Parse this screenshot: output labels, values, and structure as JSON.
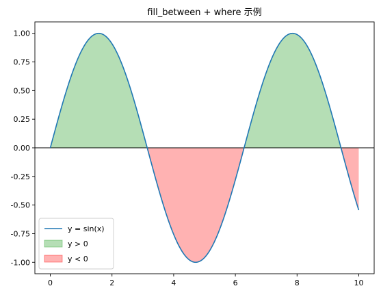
{
  "chart_data": {
    "type": "area",
    "title": "fill_between + where 示例",
    "xlabel": "",
    "ylabel": "",
    "xlim": [
      -0.5,
      10.5
    ],
    "ylim": [
      -1.1,
      1.1
    ],
    "grid": false,
    "legend_position": "lower-left",
    "x_ticks": [
      0,
      2,
      4,
      6,
      8,
      10
    ],
    "x_tick_labels": [
      "0",
      "2",
      "4",
      "6",
      "8",
      "10"
    ],
    "y_ticks": [
      -1.0,
      -0.75,
      -0.5,
      -0.25,
      0.0,
      0.25,
      0.5,
      0.75,
      1.0
    ],
    "y_tick_labels": [
      "-1.00",
      "-0.75",
      "-0.50",
      "-0.25",
      "0.00",
      "0.25",
      "0.50",
      "0.75",
      "1.00"
    ],
    "baseline": 0,
    "line_function": "sin",
    "x_range": [
      0,
      10
    ],
    "series": [
      {
        "name": "y = sin(x)",
        "kind": "line",
        "color": "#1f77b4"
      },
      {
        "name": "y > 0",
        "kind": "fill",
        "where": "positive",
        "color": "#2ca02c",
        "opacity": 0.35
      },
      {
        "name": "y < 0",
        "kind": "fill",
        "where": "negative",
        "color": "#ff0000",
        "opacity": 0.3
      }
    ],
    "x": [
      0,
      0.25,
      0.5,
      0.75,
      1,
      1.25,
      1.5,
      1.75,
      2,
      2.25,
      2.5,
      2.75,
      3,
      3.25,
      3.5,
      3.75,
      4,
      4.25,
      4.5,
      4.75,
      5,
      5.25,
      5.5,
      5.75,
      6,
      6.25,
      6.5,
      6.75,
      7,
      7.25,
      7.5,
      7.75,
      8,
      8.25,
      8.5,
      8.75,
      9,
      9.25,
      9.5,
      9.75,
      10
    ],
    "y": [
      0,
      0.25,
      0.48,
      0.68,
      0.84,
      0.95,
      1.0,
      0.98,
      0.91,
      0.78,
      0.6,
      0.38,
      0.14,
      -0.11,
      -0.35,
      -0.57,
      -0.76,
      -0.89,
      -0.98,
      -1.0,
      -0.96,
      -0.86,
      -0.71,
      -0.51,
      -0.28,
      -0.03,
      0.22,
      0.45,
      0.66,
      0.82,
      0.94,
      0.99,
      0.99,
      0.92,
      0.8,
      0.62,
      0.41,
      0.17,
      -0.08,
      -0.32,
      -0.54
    ]
  }
}
